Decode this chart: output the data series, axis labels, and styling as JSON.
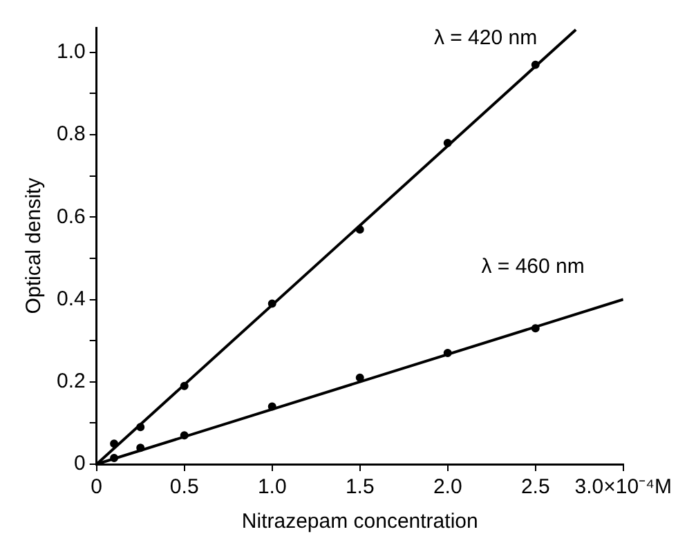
{
  "chart_data": {
    "type": "scatter",
    "xlabel": "Nitrazepam concentration",
    "ylabel": "Optical density",
    "xlim": [
      0,
      3.0
    ],
    "ylim": [
      0,
      1.06
    ],
    "xticks": [
      0,
      0.5,
      {
        "value": 1.0,
        "label": "1.0"
      },
      1.5,
      {
        "value": 2.0,
        "label": "2.0"
      },
      2.5,
      {
        "value": 3.0,
        "label": "3.0×10⁻⁴M"
      }
    ],
    "yticks": [
      0,
      {
        "value": 0.1,
        "label": null
      },
      0.2,
      {
        "value": 0.3,
        "label": null
      },
      0.4,
      {
        "value": 0.5,
        "label": null
      },
      0.6,
      {
        "value": 0.7,
        "label": null
      },
      0.8,
      {
        "value": 0.9,
        "label": null
      },
      {
        "value": 1.0,
        "label": "1.0"
      }
    ],
    "grid": false,
    "legend": false,
    "marker": "circle",
    "series": [
      {
        "type": "line",
        "name": "λ = 420 nm",
        "marker": "none",
        "color": "#000000",
        "x": [
          0,
          2.73
        ],
        "values": [
          0,
          1.055
        ]
      },
      {
        "color": "#000000",
        "x": [
          0.1,
          0.25,
          0.5,
          1.0,
          1.5,
          2.0,
          2.5
        ],
        "values": [
          0.05,
          0.09,
          0.19,
          0.39,
          0.57,
          0.78,
          0.97
        ]
      },
      {
        "type": "line",
        "name": "λ = 460 nm",
        "marker": "none",
        "color": "#000000",
        "x": [
          0,
          3.0
        ],
        "values": [
          0,
          0.4
        ]
      },
      {
        "color": "#000000",
        "x": [
          0.1,
          0.25,
          0.5,
          1.0,
          1.5,
          2.0,
          2.5
        ],
        "values": [
          0.015,
          0.04,
          0.07,
          0.14,
          0.21,
          0.27,
          0.33
        ]
      }
    ]
  }
}
